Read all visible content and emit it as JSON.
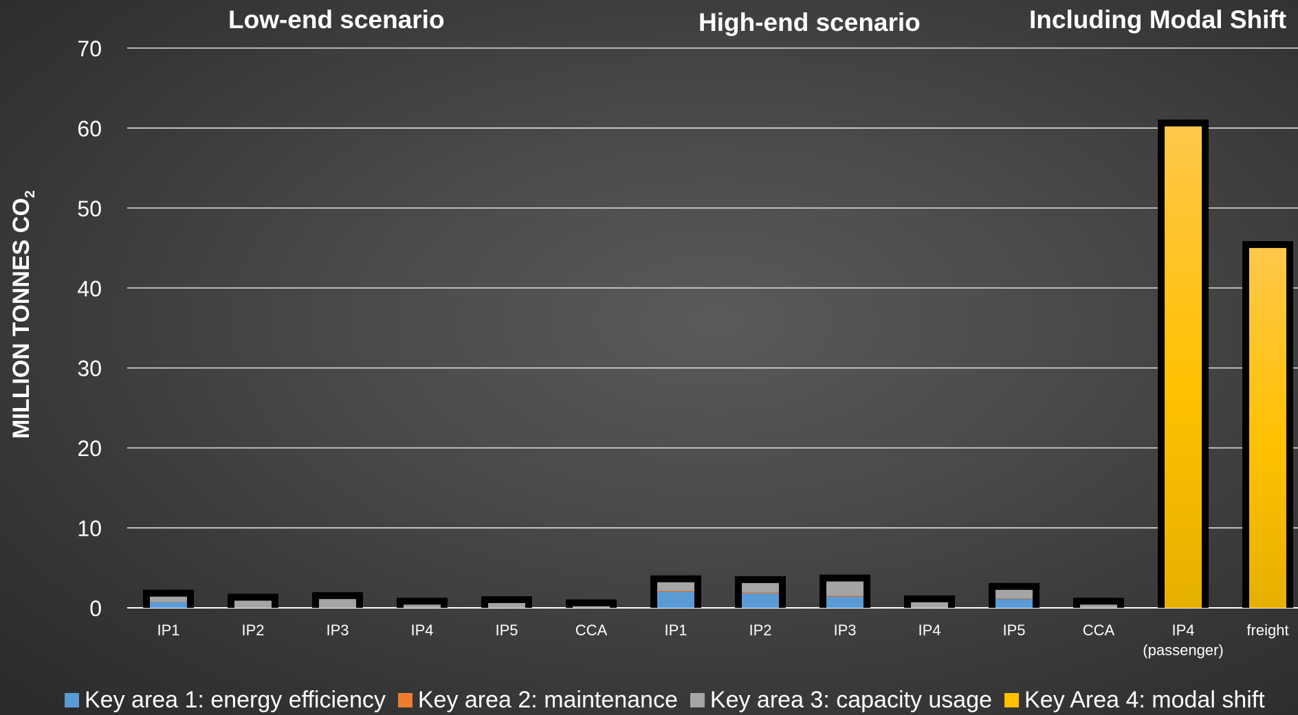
{
  "chart_data": {
    "type": "bar",
    "stacked": true,
    "ylabel": "MILLION TONNES CO",
    "ylabel_subscript": "2",
    "ylim": [
      0,
      70
    ],
    "yticks": [
      0,
      10,
      20,
      30,
      40,
      50,
      60,
      70
    ],
    "grid": true,
    "legend_position": "bottom",
    "groups": [
      {
        "title": "Low-end scenario",
        "categories": [
          "IP1",
          "IP2",
          "IP3",
          "IP4",
          "IP5",
          "CCA"
        ]
      },
      {
        "title": "High-end scenario",
        "categories": [
          "IP1",
          "IP2",
          "IP3",
          "IP4",
          "IP5",
          "CCA"
        ]
      },
      {
        "title": "Including Modal Shift",
        "categories": [
          "IP4 (passenger)",
          "freight"
        ]
      }
    ],
    "categories": [
      "IP1",
      "IP2",
      "IP3",
      "IP4",
      "IP5",
      "CCA",
      "IP1",
      "IP2",
      "IP3",
      "IP4",
      "IP5",
      "CCA",
      "IP4 (passenger)",
      "freight"
    ],
    "category_lines": [
      [
        "IP1"
      ],
      [
        "IP2"
      ],
      [
        "IP3"
      ],
      [
        "IP4"
      ],
      [
        "IP5"
      ],
      [
        "CCA"
      ],
      [
        "IP1"
      ],
      [
        "IP2"
      ],
      [
        "IP3"
      ],
      [
        "IP4"
      ],
      [
        "IP5"
      ],
      [
        "CCA"
      ],
      [
        "IP4",
        "(passenger)"
      ],
      [
        "freight"
      ]
    ],
    "series": [
      {
        "name": "Key area 1: energy efficiency",
        "color": "#5b9bd5",
        "values": [
          0.7,
          0.0,
          0.0,
          0.0,
          0.0,
          0.0,
          2.0,
          1.8,
          1.4,
          0.0,
          1.1,
          0.0,
          0,
          0
        ]
      },
      {
        "name": "Key area 2: maintenance",
        "color": "#ed7d31",
        "values": [
          0.0,
          0.0,
          0.0,
          0.0,
          0.0,
          0.0,
          0.1,
          0.1,
          0.1,
          0.0,
          0.05,
          0.0,
          0,
          0
        ]
      },
      {
        "name": "Key area 3: capacity usage",
        "color": "#a5a5a5",
        "values": [
          0.7,
          0.9,
          1.1,
          0.4,
          0.6,
          0.2,
          1.1,
          1.2,
          1.8,
          0.7,
          1.1,
          0.4,
          0,
          0
        ]
      },
      {
        "name": "Key Area 4: modal shift",
        "color": "#ffc000",
        "values": [
          0,
          0,
          0,
          0,
          0,
          0,
          0,
          0,
          0,
          0,
          0,
          0,
          60.2,
          45.0
        ]
      }
    ]
  },
  "colors": {
    "bar_outline": "#000000",
    "gridline": "#ffffff"
  }
}
